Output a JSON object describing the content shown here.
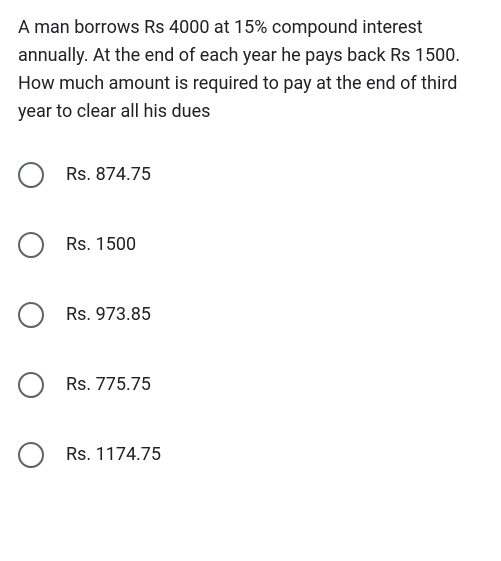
{
  "question": {
    "text": "A man borrows Rs 4000 at 15% compound interest annually. At the end of each year he pays back Rs 1500. How much amount is required to pay at the end of third year to clear all his dues",
    "text_color": "#202124",
    "font_size": 18
  },
  "options": [
    {
      "label": "Rs. 874.75"
    },
    {
      "label": "Rs. 1500"
    },
    {
      "label": "Rs. 973.85"
    },
    {
      "label": "Rs. 775.75"
    },
    {
      "label": "Rs. 1174.75"
    }
  ],
  "styling": {
    "background_color": "#ffffff",
    "radio_border_color": "#5f6368",
    "radio_size": 26,
    "option_font_size": 18,
    "option_gap": 44
  }
}
